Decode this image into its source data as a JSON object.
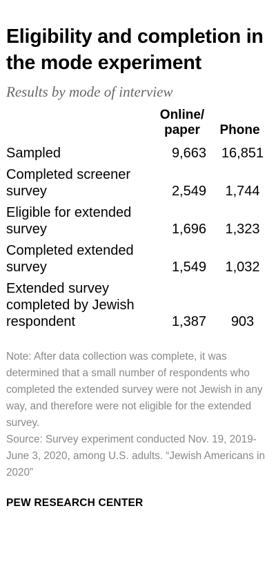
{
  "title": "Eligibility and completion in the mode experiment",
  "subtitle": "Results by mode of interview",
  "table": {
    "columns": {
      "label": "",
      "online": "Online/ paper",
      "phone": "Phone"
    },
    "rows": [
      {
        "label": "Sampled",
        "online": "9,663",
        "phone": "16,851"
      },
      {
        "label": "Completed screener survey",
        "online": "2,549",
        "phone": "1,744"
      },
      {
        "label": "Eligible for extended survey",
        "online": "1,696",
        "phone": "1,323"
      },
      {
        "label": "Completed extended survey",
        "online": "1,549",
        "phone": "1,032"
      },
      {
        "label": "Extended survey completed by Jewish respondent",
        "online": "1,387",
        "phone": "903"
      }
    ]
  },
  "note": "Note: After data collection was complete, it was determined that a small number of respondents who completed the extended survey were not Jewish in any way, and therefore were not eligible for the extended survey.",
  "source": "Source: Survey experiment conducted Nov. 19, 2019-June 3, 2020, among U.S. adults. “Jewish Americans in 2020”",
  "logo": "PEW RESEARCH CENTER",
  "colors": {
    "title": "#000000",
    "subtitle": "#666666",
    "note": "#888888"
  }
}
